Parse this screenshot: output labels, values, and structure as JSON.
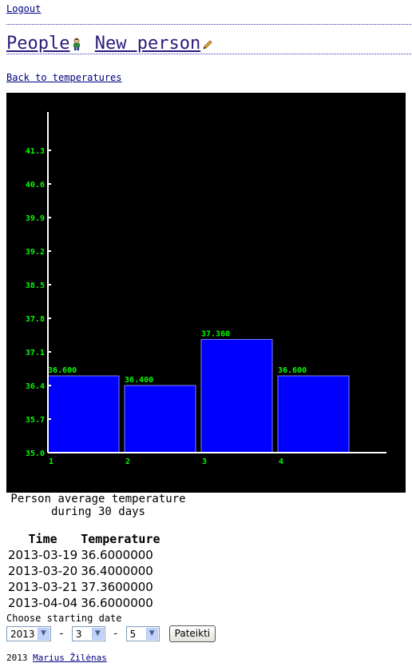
{
  "nav": {
    "logout": "Logout",
    "people": "People",
    "new_person": "New person",
    "back": "Back to temperatures"
  },
  "chart_data": {
    "type": "bar",
    "categories": [
      "1",
      "2",
      "3",
      "4"
    ],
    "values": [
      36.6,
      36.4,
      37.36,
      36.6
    ],
    "data_labels": [
      "36.600",
      "36.400",
      "37.360",
      "36.600"
    ],
    "y_ticks": [
      "35.0",
      "35.7",
      "36.4",
      "37.1",
      "37.8",
      "38.5",
      "39.2",
      "39.9",
      "40.6",
      "41.3"
    ],
    "ylim": [
      35.0,
      42.0
    ],
    "title": "",
    "xlabel": "",
    "ylabel": "",
    "grid": false,
    "colors": {
      "bar": "#0000ff",
      "bar_border": "#8080ff",
      "label": "#00ff00",
      "axis": "#ffffff",
      "background": "#000000"
    }
  },
  "caption": "Person average temperature during 30 days",
  "table": {
    "headers": [
      "Time",
      "Temperature"
    ],
    "rows": [
      [
        "2013-03-19",
        "36.6000000"
      ],
      [
        "2013-03-20",
        "36.4000000"
      ],
      [
        "2013-03-21",
        "37.3600000"
      ],
      [
        "2013-04-04",
        "36.6000000"
      ]
    ]
  },
  "form": {
    "label": "Choose starting date",
    "year": "2013",
    "month": "3",
    "day": "5",
    "separator": "-",
    "submit": "Pateikti"
  },
  "footer": {
    "year": "2013",
    "author": "Marius Žilėnas"
  }
}
